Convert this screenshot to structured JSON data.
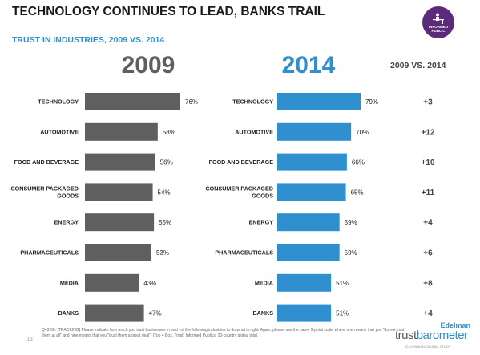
{
  "header": {
    "title": "TECHNOLOGY CONTINUES TO LEAD, BANKS TRAIL",
    "subtitle": "TRUST IN INDUSTRIES, 2009 VS. 2014"
  },
  "badge": {
    "text": "INFORMED PUBLIC",
    "icon": "person-at-desk-icon",
    "color": "#5b2a7a"
  },
  "change_header": "2009 VS. 2014",
  "chart_data": [
    {
      "type": "bar",
      "orientation": "horizontal",
      "title": "2009",
      "color": "#5f5f5f",
      "categories": [
        "TECHNOLOGY",
        "AUTOMOTIVE",
        "FOOD AND BEVERAGE",
        "CONSUMER PACKAGED GOODS",
        "ENERGY",
        "PHARMACEUTICALS",
        "MEDIA",
        "BANKS"
      ],
      "values": [
        76,
        58,
        56,
        54,
        55,
        53,
        43,
        47
      ],
      "value_labels": [
        "76%",
        "58%",
        "56%",
        "54%",
        "55%",
        "53%",
        "43%",
        "47%"
      ]
    },
    {
      "type": "bar",
      "orientation": "horizontal",
      "title": "2014",
      "color": "#2f8fcf",
      "categories": [
        "TECHNOLOGY",
        "AUTOMOTIVE",
        "FOOD AND BEVERAGE",
        "CONSUMER PACKAGED GOODS",
        "ENERGY",
        "PHARMACEUTICALS",
        "MEDIA",
        "BANKS"
      ],
      "values": [
        79,
        70,
        66,
        65,
        59,
        59,
        51,
        51
      ],
      "value_labels": [
        "79%",
        "70%",
        "66%",
        "65%",
        "59%",
        "59%",
        "51%",
        "51%"
      ]
    },
    {
      "type": "table",
      "title": "2009 VS. 2014",
      "categories": [
        "TECHNOLOGY",
        "AUTOMOTIVE",
        "FOOD AND BEVERAGE",
        "CONSUMER PACKAGED GOODS",
        "ENERGY",
        "PHARMACEUTICALS",
        "MEDIA",
        "BANKS"
      ],
      "values": [
        "+3",
        "+12",
        "+10",
        "+11",
        "+4",
        "+6",
        "+8",
        "+4"
      ]
    }
  ],
  "footnote": "Q43-60. [TRACKING] Please indicate how much you trust businesses in each of the following industries to do what is right. Again, please use the same 9-point scale where one means that you \"do not trust them at all\" and nine means that you \"trust them a great deal\". (Top 4 Box, Trust) Informed Publics, 20-country global total.",
  "page_number": "13",
  "logo": {
    "brand": "Edelman",
    "word1": "trust",
    "word2": "barometer",
    "tagline": "2014 ANNUAL GLOBAL STUDY"
  }
}
